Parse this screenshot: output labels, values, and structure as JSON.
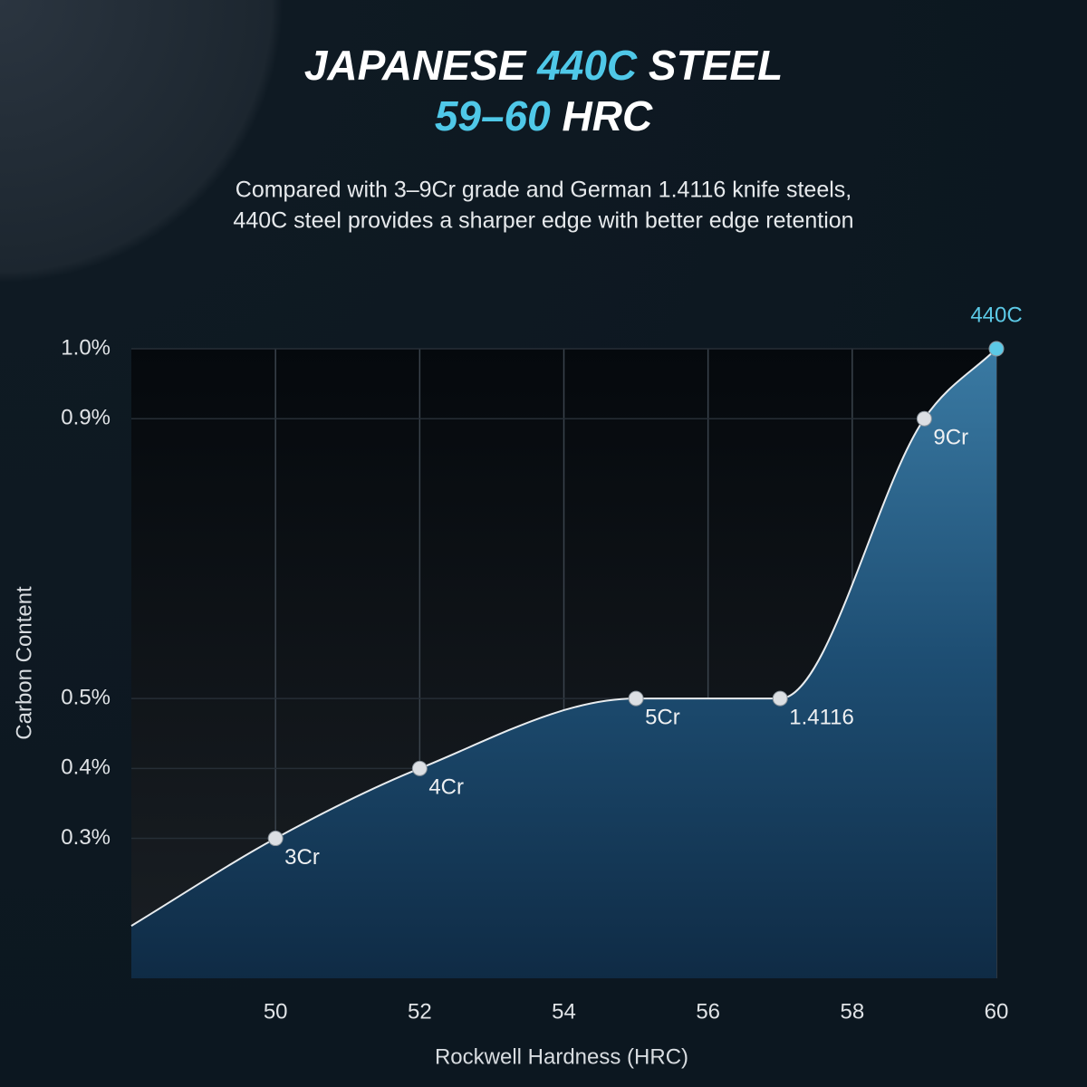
{
  "chart_data": {
    "type": "area-line",
    "title_lines": [
      [
        "JAPANESE",
        "440C",
        "STEEL"
      ],
      [
        "59–60",
        "HRC"
      ]
    ],
    "subtitle_lines": [
      "Compared with 3–9Cr grade and German 1.4116 knife steels,",
      "440C steel provides a sharper edge with better edge retention"
    ],
    "x_label": "Rockwell Hardness (HRC)",
    "y_label": "Carbon Content",
    "x": [
      48,
      50,
      52,
      55,
      57,
      59,
      60
    ],
    "series": [
      {
        "values": [
          0.175,
          0.3,
          0.4,
          0.5,
          0.5,
          0.9,
          1.0
        ],
        "point_labels": [
          null,
          "3Cr",
          "4Cr",
          "5Cr",
          "1.4116",
          "9Cr",
          "440C"
        ],
        "point_colors": [
          null,
          "#dcdfe3",
          "#dcdfe3",
          "#dcdfe3",
          "#dcdfe3",
          "#dcdfe3",
          "#5cc9e6"
        ],
        "color": "#e8ecef"
      }
    ],
    "xlim": [
      48,
      60
    ],
    "xticks": [
      50,
      52,
      54,
      56,
      58,
      60
    ],
    "ylim": [
      0.1,
      1.0
    ],
    "yticks": [
      {
        "value": 0.3,
        "label": "0.3%"
      },
      {
        "value": 0.4,
        "label": "0.4%"
      },
      {
        "value": 0.5,
        "label": "0.5%"
      },
      {
        "value": 0.9,
        "label": "0.9%"
      },
      {
        "value": 1.0,
        "label": "1.0%"
      }
    ],
    "grid": true
  }
}
